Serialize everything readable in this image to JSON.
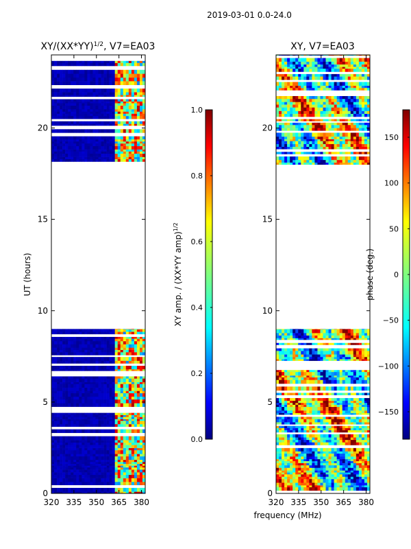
{
  "figure_title": "2019-03-01 0.0-24.0",
  "colors": {
    "jet": [
      "#00007f",
      "#0000ff",
      "#007fff",
      "#00ffff",
      "#7fff7f",
      "#ffff00",
      "#ff7f00",
      "#ff0000",
      "#7f0000"
    ],
    "background": "#ffffff",
    "axis": "#000000"
  },
  "chart_data": [
    {
      "type": "heatmap",
      "title": "XY/(XX*YY)",
      "title_sup": "1/2",
      "title_suffix": ", V7=EA03",
      "xlabel": "",
      "ylabel": "UT (hours)",
      "xlim": [
        320,
        382.5
      ],
      "ylim": [
        0,
        24
      ],
      "xticks": [
        320,
        335,
        350,
        365,
        380
      ],
      "yticks": [
        0,
        5,
        10,
        15,
        20
      ],
      "colorbar": {
        "label": "XY amp. / (XX*YY amp)",
        "label_sup": "1/2",
        "range": [
          0.0,
          1.0
        ],
        "ticks": [
          0.0,
          0.2,
          0.4,
          0.6,
          0.8,
          1.0
        ],
        "tick_labels": [
          "0.0",
          "0.2",
          "0.4",
          "0.6",
          "0.8",
          "1.0"
        ]
      },
      "data_blocks_ut": [
        [
          0.0,
          9.0
        ],
        [
          18.0,
          24.0
        ]
      ],
      "description_values": "low amplitude (~0.05) at 320-362 MHz; mixed 0.3-0.9 in 362-382 MHz channels"
    },
    {
      "type": "heatmap",
      "title": "XY, V7=EA03",
      "xlabel": "frequency (MHz)",
      "ylabel": "",
      "xlim": [
        320,
        382.5
      ],
      "ylim": [
        0,
        24
      ],
      "xticks": [
        320,
        335,
        350,
        365,
        380
      ],
      "yticks": [
        0,
        5,
        10,
        15,
        20
      ],
      "colorbar": {
        "label": "phase (deg.)",
        "range": [
          -180,
          180
        ],
        "ticks": [
          -150,
          -100,
          -50,
          0,
          50,
          100,
          150
        ],
        "tick_labels": [
          "−150",
          "−100",
          "−50",
          "0",
          "50",
          "100",
          "150"
        ]
      },
      "data_blocks_ut": [
        [
          0.0,
          9.0
        ],
        [
          18.0,
          24.0
        ]
      ],
      "description_values": "phase spans full -180 to 180 deg range"
    }
  ]
}
